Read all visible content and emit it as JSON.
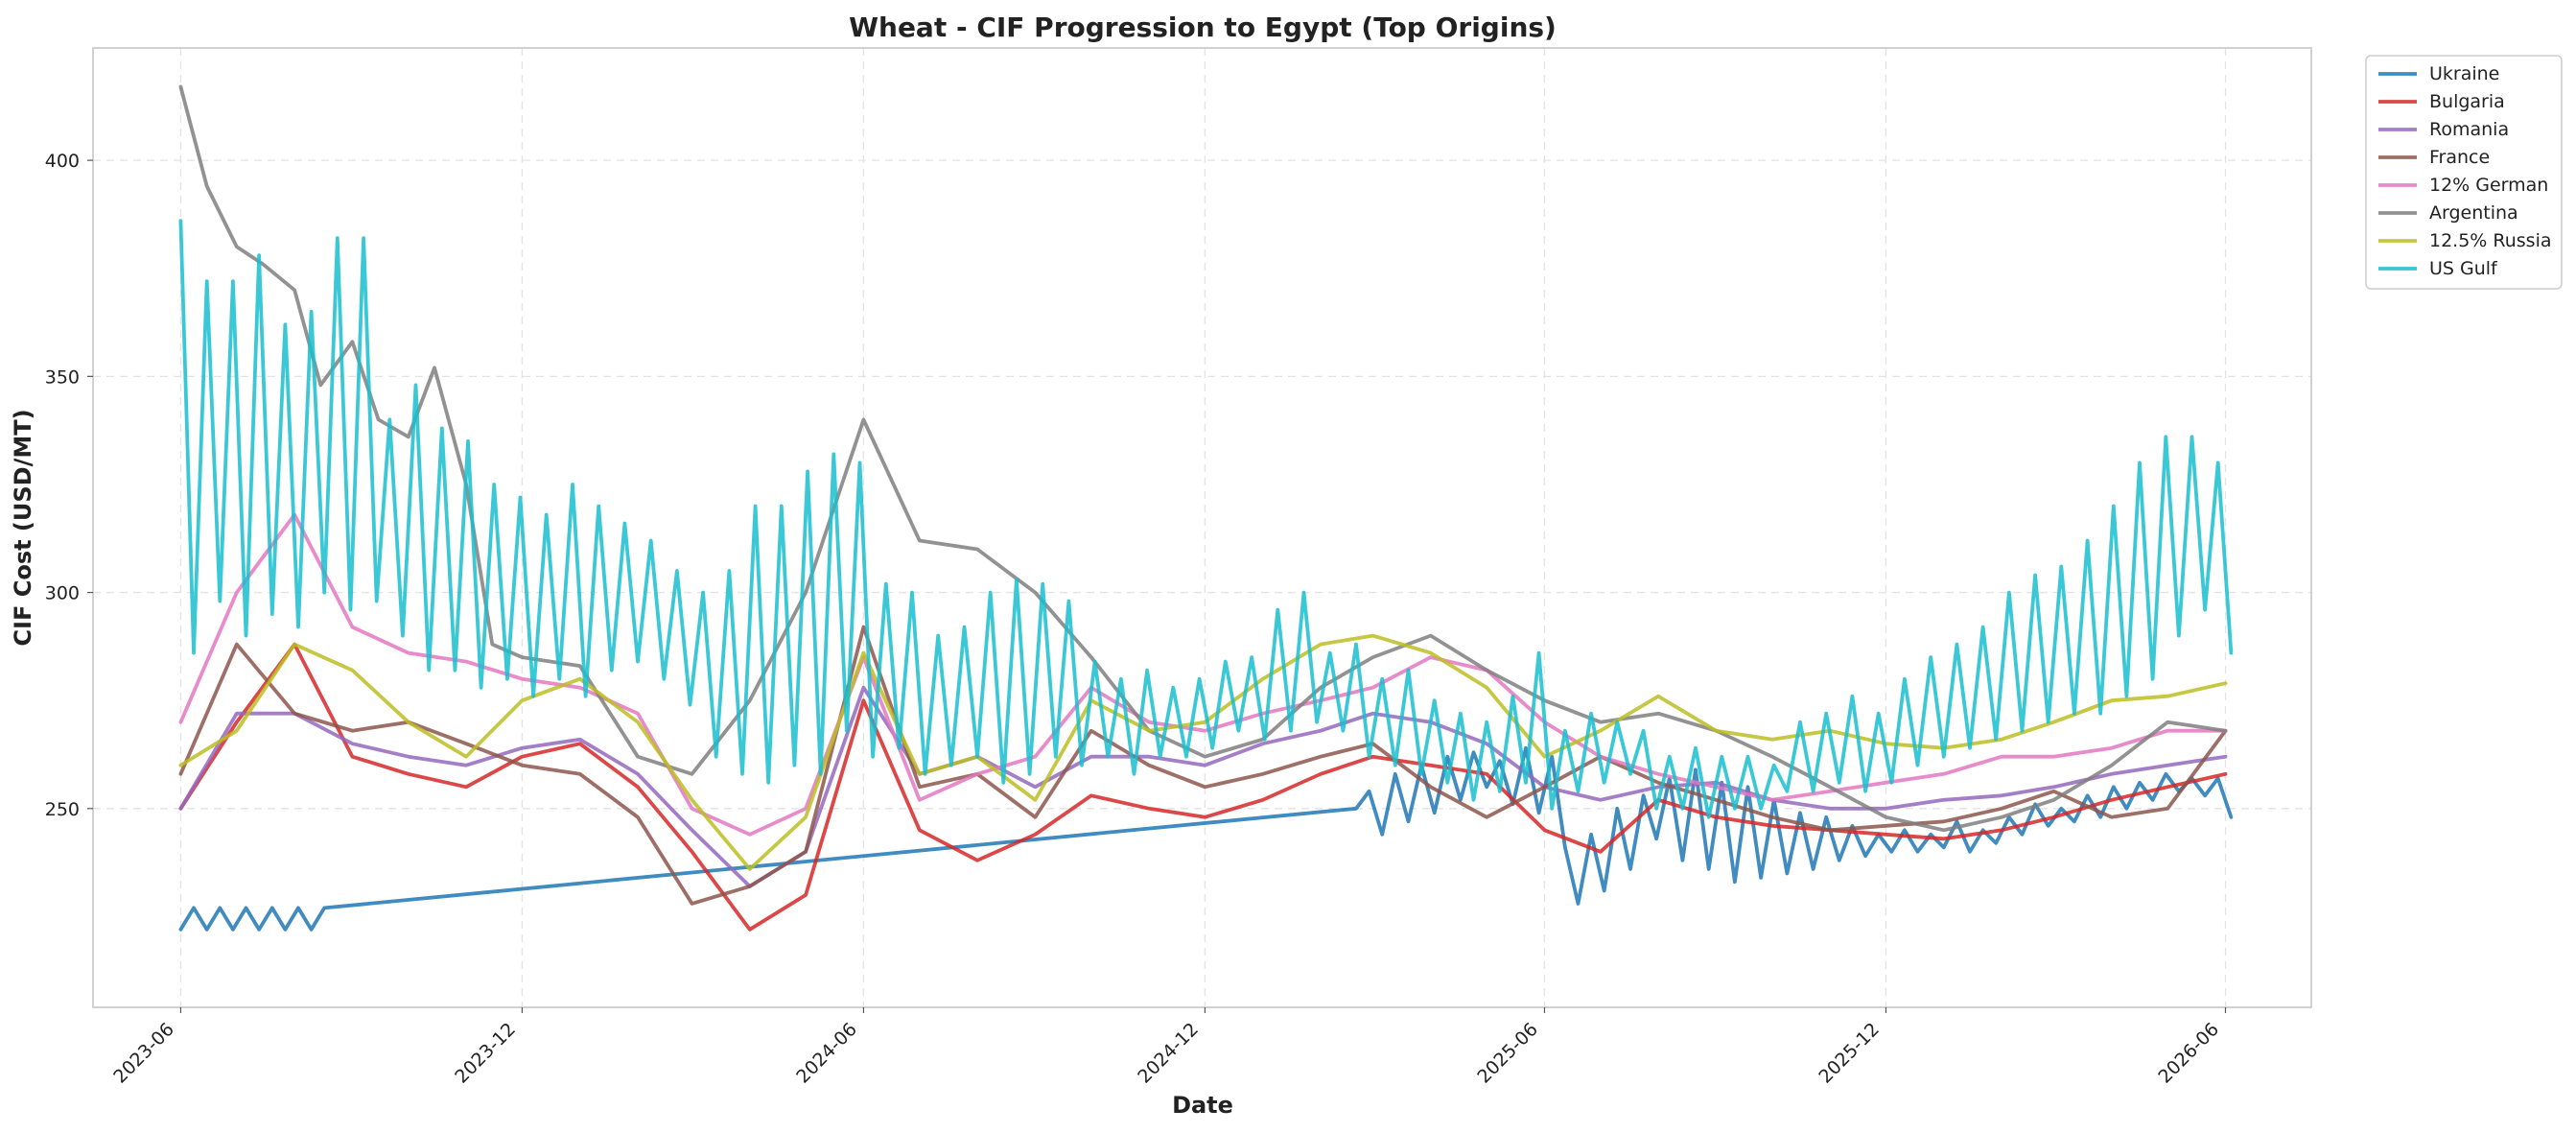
{
  "chart_data": {
    "type": "line",
    "title": "Wheat - CIF Progression to Egypt (Top Origins)",
    "xlabel": "Date",
    "ylabel": "CIF Cost (USD/MT)",
    "xlim": [
      "2023-04-15",
      "2026-07-17"
    ],
    "ylim": [
      204,
      426
    ],
    "x_ticks": [
      "2023-06",
      "2023-12",
      "2024-06",
      "2024-12",
      "2025-06",
      "2025-12",
      "2026-06"
    ],
    "y_ticks": [
      250,
      300,
      350,
      400
    ],
    "grid": true,
    "legend_position": "outside-top-right",
    "series": [
      {
        "name": "Ukraine",
        "color": "#1f77b4",
        "x": [
          "2023-06-01",
          "2023-06-08",
          "2023-06-15",
          "2023-06-22",
          "2023-06-29",
          "2023-07-06",
          "2023-07-13",
          "2023-07-20",
          "2023-07-27",
          "2023-08-03",
          "2023-08-10",
          "2023-08-17",
          "2025-02-20",
          "2025-02-27",
          "2025-03-06",
          "2025-03-13",
          "2025-03-20",
          "2025-03-27",
          "2025-04-03",
          "2025-04-10",
          "2025-04-17",
          "2025-04-24",
          "2025-05-01",
          "2025-05-08",
          "2025-05-15",
          "2025-05-22",
          "2025-05-29",
          "2025-06-05",
          "2025-06-12",
          "2025-06-19",
          "2025-06-26",
          "2025-07-03",
          "2025-07-10",
          "2025-07-17",
          "2025-07-24",
          "2025-07-31",
          "2025-08-07",
          "2025-08-14",
          "2025-08-21",
          "2025-08-28",
          "2025-09-04",
          "2025-09-11",
          "2025-09-18",
          "2025-09-25",
          "2025-10-02",
          "2025-10-09",
          "2025-10-16",
          "2025-10-23",
          "2025-10-30",
          "2025-11-06",
          "2025-11-13",
          "2025-11-20",
          "2025-11-27",
          "2025-12-04",
          "2025-12-11",
          "2025-12-18",
          "2025-12-25",
          "2026-01-01",
          "2026-01-08",
          "2026-01-15",
          "2026-01-22",
          "2026-01-29",
          "2026-02-05",
          "2026-02-12",
          "2026-02-19",
          "2026-02-26",
          "2026-03-05",
          "2026-03-12",
          "2026-03-19",
          "2026-03-26",
          "2026-04-02",
          "2026-04-09",
          "2026-04-16",
          "2026-04-23",
          "2026-04-30",
          "2026-05-07",
          "2026-05-14",
          "2026-05-21",
          "2026-05-28",
          "2026-06-04"
        ],
        "values": [
          222,
          227,
          222,
          227,
          222,
          227,
          222,
          227,
          222,
          227,
          222,
          227,
          250,
          254,
          244,
          258,
          247,
          260,
          249,
          262,
          252,
          263,
          255,
          261,
          251,
          264,
          249,
          262,
          241,
          228,
          244,
          231,
          250,
          236,
          253,
          243,
          257,
          238,
          259,
          236,
          256,
          233,
          255,
          234,
          252,
          235,
          249,
          236,
          248,
          238,
          246,
          239,
          244,
          240,
          245,
          240,
          244,
          241,
          247,
          240,
          245,
          242,
          248,
          244,
          251,
          246,
          250,
          247,
          253,
          248,
          255,
          250,
          256,
          252,
          258,
          254,
          257,
          253,
          257,
          248
        ]
      },
      {
        "name": "Bulgaria",
        "color": "#d62728",
        "x": [
          "2023-06-01",
          "2023-07-01",
          "2023-08-01",
          "2023-09-01",
          "2023-10-01",
          "2023-11-01",
          "2023-12-01",
          "2024-01-01",
          "2024-02-01",
          "2024-03-01",
          "2024-04-01",
          "2024-05-01",
          "2024-06-01",
          "2024-07-01",
          "2024-08-01",
          "2024-09-01",
          "2024-10-01",
          "2024-11-01",
          "2024-12-01",
          "2025-01-01",
          "2025-02-01",
          "2025-03-01",
          "2025-04-01",
          "2025-05-01",
          "2025-06-01",
          "2025-07-01",
          "2025-08-01",
          "2025-09-01",
          "2025-10-01",
          "2025-11-01",
          "2025-12-01",
          "2026-01-01",
          "2026-02-01",
          "2026-03-01",
          "2026-04-01",
          "2026-05-01",
          "2026-06-01"
        ],
        "values": [
          250,
          270,
          288,
          262,
          258,
          255,
          262,
          265,
          255,
          240,
          222,
          230,
          275,
          245,
          238,
          244,
          253,
          250,
          248,
          252,
          258,
          262,
          260,
          258,
          245,
          240,
          252,
          248,
          246,
          245,
          244,
          243,
          245,
          248,
          252,
          255,
          258
        ]
      },
      {
        "name": "Romania",
        "color": "#9467bd",
        "x": [
          "2023-06-01",
          "2023-07-01",
          "2023-08-01",
          "2023-09-01",
          "2023-10-01",
          "2023-11-01",
          "2023-12-01",
          "2024-01-01",
          "2024-02-01",
          "2024-03-01",
          "2024-04-01",
          "2024-05-01",
          "2024-06-01",
          "2024-07-01",
          "2024-08-01",
          "2024-09-01",
          "2024-10-01",
          "2024-11-01",
          "2024-12-01",
          "2025-01-01",
          "2025-02-01",
          "2025-03-01",
          "2025-04-01",
          "2025-05-01",
          "2025-06-01",
          "2025-07-01",
          "2025-08-01",
          "2025-09-01",
          "2025-10-01",
          "2025-11-01",
          "2025-12-01",
          "2026-01-01",
          "2026-02-01",
          "2026-03-01",
          "2026-04-01",
          "2026-05-01",
          "2026-06-01"
        ],
        "values": [
          250,
          272,
          272,
          265,
          262,
          260,
          264,
          266,
          258,
          245,
          232,
          240,
          278,
          258,
          262,
          255,
          262,
          262,
          260,
          265,
          268,
          272,
          270,
          265,
          255,
          252,
          255,
          256,
          252,
          250,
          250,
          252,
          253,
          255,
          258,
          260,
          262
        ]
      },
      {
        "name": "France",
        "color": "#8c564b",
        "x": [
          "2023-06-01",
          "2023-07-01",
          "2023-08-01",
          "2023-09-01",
          "2023-10-01",
          "2023-11-01",
          "2023-12-01",
          "2024-01-01",
          "2024-02-01",
          "2024-03-01",
          "2024-04-01",
          "2024-05-01",
          "2024-06-01",
          "2024-07-01",
          "2024-08-01",
          "2024-09-01",
          "2024-10-01",
          "2024-11-01",
          "2024-12-01",
          "2025-01-01",
          "2025-02-01",
          "2025-03-01",
          "2025-04-01",
          "2025-05-01",
          "2025-06-01",
          "2025-07-01",
          "2025-08-01",
          "2025-09-01",
          "2025-10-01",
          "2025-11-01",
          "2025-12-01",
          "2026-01-01",
          "2026-02-01",
          "2026-03-01",
          "2026-04-01",
          "2026-05-01",
          "2026-06-01"
        ],
        "values": [
          258,
          288,
          272,
          268,
          270,
          265,
          260,
          258,
          248,
          228,
          232,
          240,
          292,
          255,
          258,
          248,
          268,
          260,
          255,
          258,
          262,
          265,
          255,
          248,
          255,
          262,
          256,
          252,
          248,
          245,
          246,
          247,
          250,
          254,
          248,
          250,
          268
        ]
      },
      {
        "name": "12% German",
        "color": "#e377c2",
        "x": [
          "2023-06-01",
          "2023-07-01",
          "2023-08-01",
          "2023-09-01",
          "2023-10-01",
          "2023-11-01",
          "2023-12-01",
          "2024-01-01",
          "2024-02-01",
          "2024-03-01",
          "2024-04-01",
          "2024-05-01",
          "2024-06-01",
          "2024-07-01",
          "2024-08-01",
          "2024-09-01",
          "2024-10-01",
          "2024-11-01",
          "2024-12-01",
          "2025-01-01",
          "2025-02-01",
          "2025-03-01",
          "2025-04-01",
          "2025-05-01",
          "2025-06-01",
          "2025-07-01",
          "2025-08-01",
          "2025-09-01",
          "2025-10-01",
          "2025-11-01",
          "2025-12-01",
          "2026-01-01",
          "2026-02-01",
          "2026-03-01",
          "2026-04-01",
          "2026-05-01",
          "2026-06-01"
        ],
        "values": [
          270,
          300,
          318,
          292,
          286,
          284,
          280,
          278,
          272,
          250,
          244,
          250,
          285,
          252,
          258,
          262,
          278,
          270,
          268,
          272,
          275,
          278,
          285,
          282,
          270,
          262,
          258,
          255,
          252,
          254,
          256,
          258,
          262,
          262,
          264,
          268,
          268
        ]
      },
      {
        "name": "Argentina",
        "color": "#7f7f7f",
        "x": [
          "2023-06-01",
          "2023-06-15",
          "2023-07-01",
          "2023-07-15",
          "2023-08-01",
          "2023-08-15",
          "2023-09-01",
          "2023-09-15",
          "2023-10-01",
          "2023-10-15",
          "2023-11-01",
          "2023-11-15",
          "2023-12-01",
          "2024-01-01",
          "2024-02-01",
          "2024-03-01",
          "2024-04-01",
          "2024-05-01",
          "2024-06-01",
          "2024-07-01",
          "2024-08-01",
          "2024-09-01",
          "2024-10-01",
          "2024-11-01",
          "2024-12-01",
          "2025-01-01",
          "2025-02-01",
          "2025-03-01",
          "2025-04-01",
          "2025-05-01",
          "2025-06-01",
          "2025-07-01",
          "2025-08-01",
          "2025-09-01",
          "2025-10-01",
          "2025-11-01",
          "2025-12-01",
          "2026-01-01",
          "2026-02-01",
          "2026-03-01",
          "2026-04-01",
          "2026-05-01",
          "2026-06-01"
        ],
        "values": [
          417,
          394,
          380,
          376,
          370,
          348,
          358,
          340,
          336,
          352,
          325,
          288,
          285,
          283,
          262,
          258,
          275,
          300,
          340,
          312,
          310,
          300,
          285,
          268,
          262,
          266,
          278,
          285,
          290,
          282,
          275,
          270,
          272,
          268,
          262,
          255,
          248,
          245,
          248,
          252,
          260,
          270,
          268
        ]
      },
      {
        "name": "12.5% Russia",
        "color": "#bcbd22",
        "x": [
          "2023-06-01",
          "2023-07-01",
          "2023-08-01",
          "2023-09-01",
          "2023-10-01",
          "2023-11-01",
          "2023-12-01",
          "2024-01-01",
          "2024-02-01",
          "2024-03-01",
          "2024-04-01",
          "2024-05-01",
          "2024-06-01",
          "2024-07-01",
          "2024-08-01",
          "2024-09-01",
          "2024-10-01",
          "2024-11-01",
          "2024-12-01",
          "2025-01-01",
          "2025-02-01",
          "2025-03-01",
          "2025-04-01",
          "2025-05-01",
          "2025-06-01",
          "2025-07-01",
          "2025-08-01",
          "2025-09-01",
          "2025-10-01",
          "2025-11-01",
          "2025-12-01",
          "2026-01-01",
          "2026-02-01",
          "2026-03-01",
          "2026-04-01",
          "2026-05-01",
          "2026-06-01"
        ],
        "values": [
          260,
          268,
          288,
          282,
          270,
          262,
          275,
          280,
          270,
          252,
          236,
          248,
          286,
          258,
          262,
          252,
          275,
          268,
          270,
          280,
          288,
          290,
          286,
          278,
          262,
          268,
          276,
          268,
          266,
          268,
          265,
          264,
          266,
          270,
          275,
          276,
          279
        ]
      },
      {
        "name": "US Gulf",
        "color": "#17becf",
        "x": [
          "2023-06-01",
          "2023-06-08",
          "2023-06-15",
          "2023-06-22",
          "2023-06-29",
          "2023-07-06",
          "2023-07-13",
          "2023-07-20",
          "2023-07-27",
          "2023-08-03",
          "2023-08-10",
          "2023-08-17",
          "2023-08-24",
          "2023-08-31",
          "2023-09-07",
          "2023-09-14",
          "2023-09-21",
          "2023-09-28",
          "2023-10-05",
          "2023-10-12",
          "2023-10-19",
          "2023-10-26",
          "2023-11-02",
          "2023-11-09",
          "2023-11-16",
          "2023-11-23",
          "2023-11-30",
          "2023-12-07",
          "2023-12-14",
          "2023-12-21",
          "2023-12-28",
          "2024-01-04",
          "2024-01-11",
          "2024-01-18",
          "2024-01-25",
          "2024-02-01",
          "2024-02-08",
          "2024-02-15",
          "2024-02-22",
          "2024-02-29",
          "2024-03-07",
          "2024-03-14",
          "2024-03-21",
          "2024-03-28",
          "2024-04-04",
          "2024-04-11",
          "2024-04-18",
          "2024-04-25",
          "2024-05-02",
          "2024-05-09",
          "2024-05-16",
          "2024-05-23",
          "2024-05-30",
          "2024-06-06",
          "2024-06-13",
          "2024-06-20",
          "2024-06-27",
          "2024-07-04",
          "2024-07-11",
          "2024-07-18",
          "2024-07-25",
          "2024-08-01",
          "2024-08-08",
          "2024-08-15",
          "2024-08-22",
          "2024-08-29",
          "2024-09-05",
          "2024-09-12",
          "2024-09-19",
          "2024-09-26",
          "2024-10-03",
          "2024-10-10",
          "2024-10-17",
          "2024-10-24",
          "2024-10-31",
          "2024-11-07",
          "2024-11-14",
          "2024-11-21",
          "2024-11-28",
          "2024-12-05",
          "2024-12-12",
          "2024-12-19",
          "2024-12-26",
          "2025-01-02",
          "2025-01-09",
          "2025-01-16",
          "2025-01-23",
          "2025-01-30",
          "2025-02-06",
          "2025-02-13",
          "2025-02-20",
          "2025-02-27",
          "2025-03-06",
          "2025-03-13",
          "2025-03-20",
          "2025-03-27",
          "2025-04-03",
          "2025-04-10",
          "2025-04-17",
          "2025-04-24",
          "2025-05-01",
          "2025-05-08",
          "2025-05-15",
          "2025-05-22",
          "2025-05-29",
          "2025-06-05",
          "2025-06-12",
          "2025-06-19",
          "2025-06-26",
          "2025-07-03",
          "2025-07-10",
          "2025-07-17",
          "2025-07-24",
          "2025-07-31",
          "2025-08-07",
          "2025-08-14",
          "2025-08-21",
          "2025-08-28",
          "2025-09-04",
          "2025-09-11",
          "2025-09-18",
          "2025-09-25",
          "2025-10-02",
          "2025-10-09",
          "2025-10-16",
          "2025-10-23",
          "2025-10-30",
          "2025-11-06",
          "2025-11-13",
          "2025-11-20",
          "2025-11-27",
          "2025-12-04",
          "2025-12-11",
          "2025-12-18",
          "2025-12-25",
          "2026-01-01",
          "2026-01-08",
          "2026-01-15",
          "2026-01-22",
          "2026-01-29",
          "2026-02-05",
          "2026-02-12",
          "2026-02-19",
          "2026-02-26",
          "2026-03-05",
          "2026-03-12",
          "2026-03-19",
          "2026-03-26",
          "2026-04-02",
          "2026-04-09",
          "2026-04-16",
          "2026-04-23",
          "2026-04-30",
          "2026-05-07",
          "2026-05-14",
          "2026-05-21",
          "2026-05-28",
          "2026-06-04"
        ],
        "values": [
          386,
          286,
          372,
          298,
          372,
          290,
          378,
          295,
          362,
          292,
          365,
          300,
          382,
          296,
          382,
          298,
          340,
          290,
          348,
          282,
          338,
          282,
          335,
          278,
          325,
          280,
          322,
          276,
          318,
          280,
          325,
          276,
          320,
          282,
          316,
          284,
          312,
          280,
          305,
          274,
          300,
          262,
          305,
          258,
          320,
          256,
          320,
          260,
          328,
          258,
          332,
          268,
          330,
          262,
          302,
          264,
          300,
          258,
          290,
          260,
          292,
          262,
          300,
          256,
          303,
          258,
          302,
          262,
          298,
          260,
          284,
          262,
          280,
          258,
          282,
          262,
          278,
          262,
          280,
          264,
          284,
          268,
          285,
          266,
          296,
          268,
          300,
          270,
          286,
          268,
          288,
          262,
          280,
          260,
          282,
          258,
          275,
          256,
          272,
          252,
          270,
          254,
          276,
          256,
          286,
          250,
          268,
          254,
          272,
          256,
          270,
          258,
          268,
          250,
          262,
          250,
          264,
          248,
          262,
          250,
          262,
          250,
          260,
          254,
          270,
          254,
          272,
          256,
          276,
          254,
          272,
          256,
          280,
          260,
          285,
          262,
          288,
          264,
          292,
          266,
          300,
          268,
          304,
          270,
          306,
          272,
          312,
          272,
          320,
          276,
          330,
          280,
          336,
          290,
          336,
          296,
          330,
          286
        ]
      }
    ]
  }
}
